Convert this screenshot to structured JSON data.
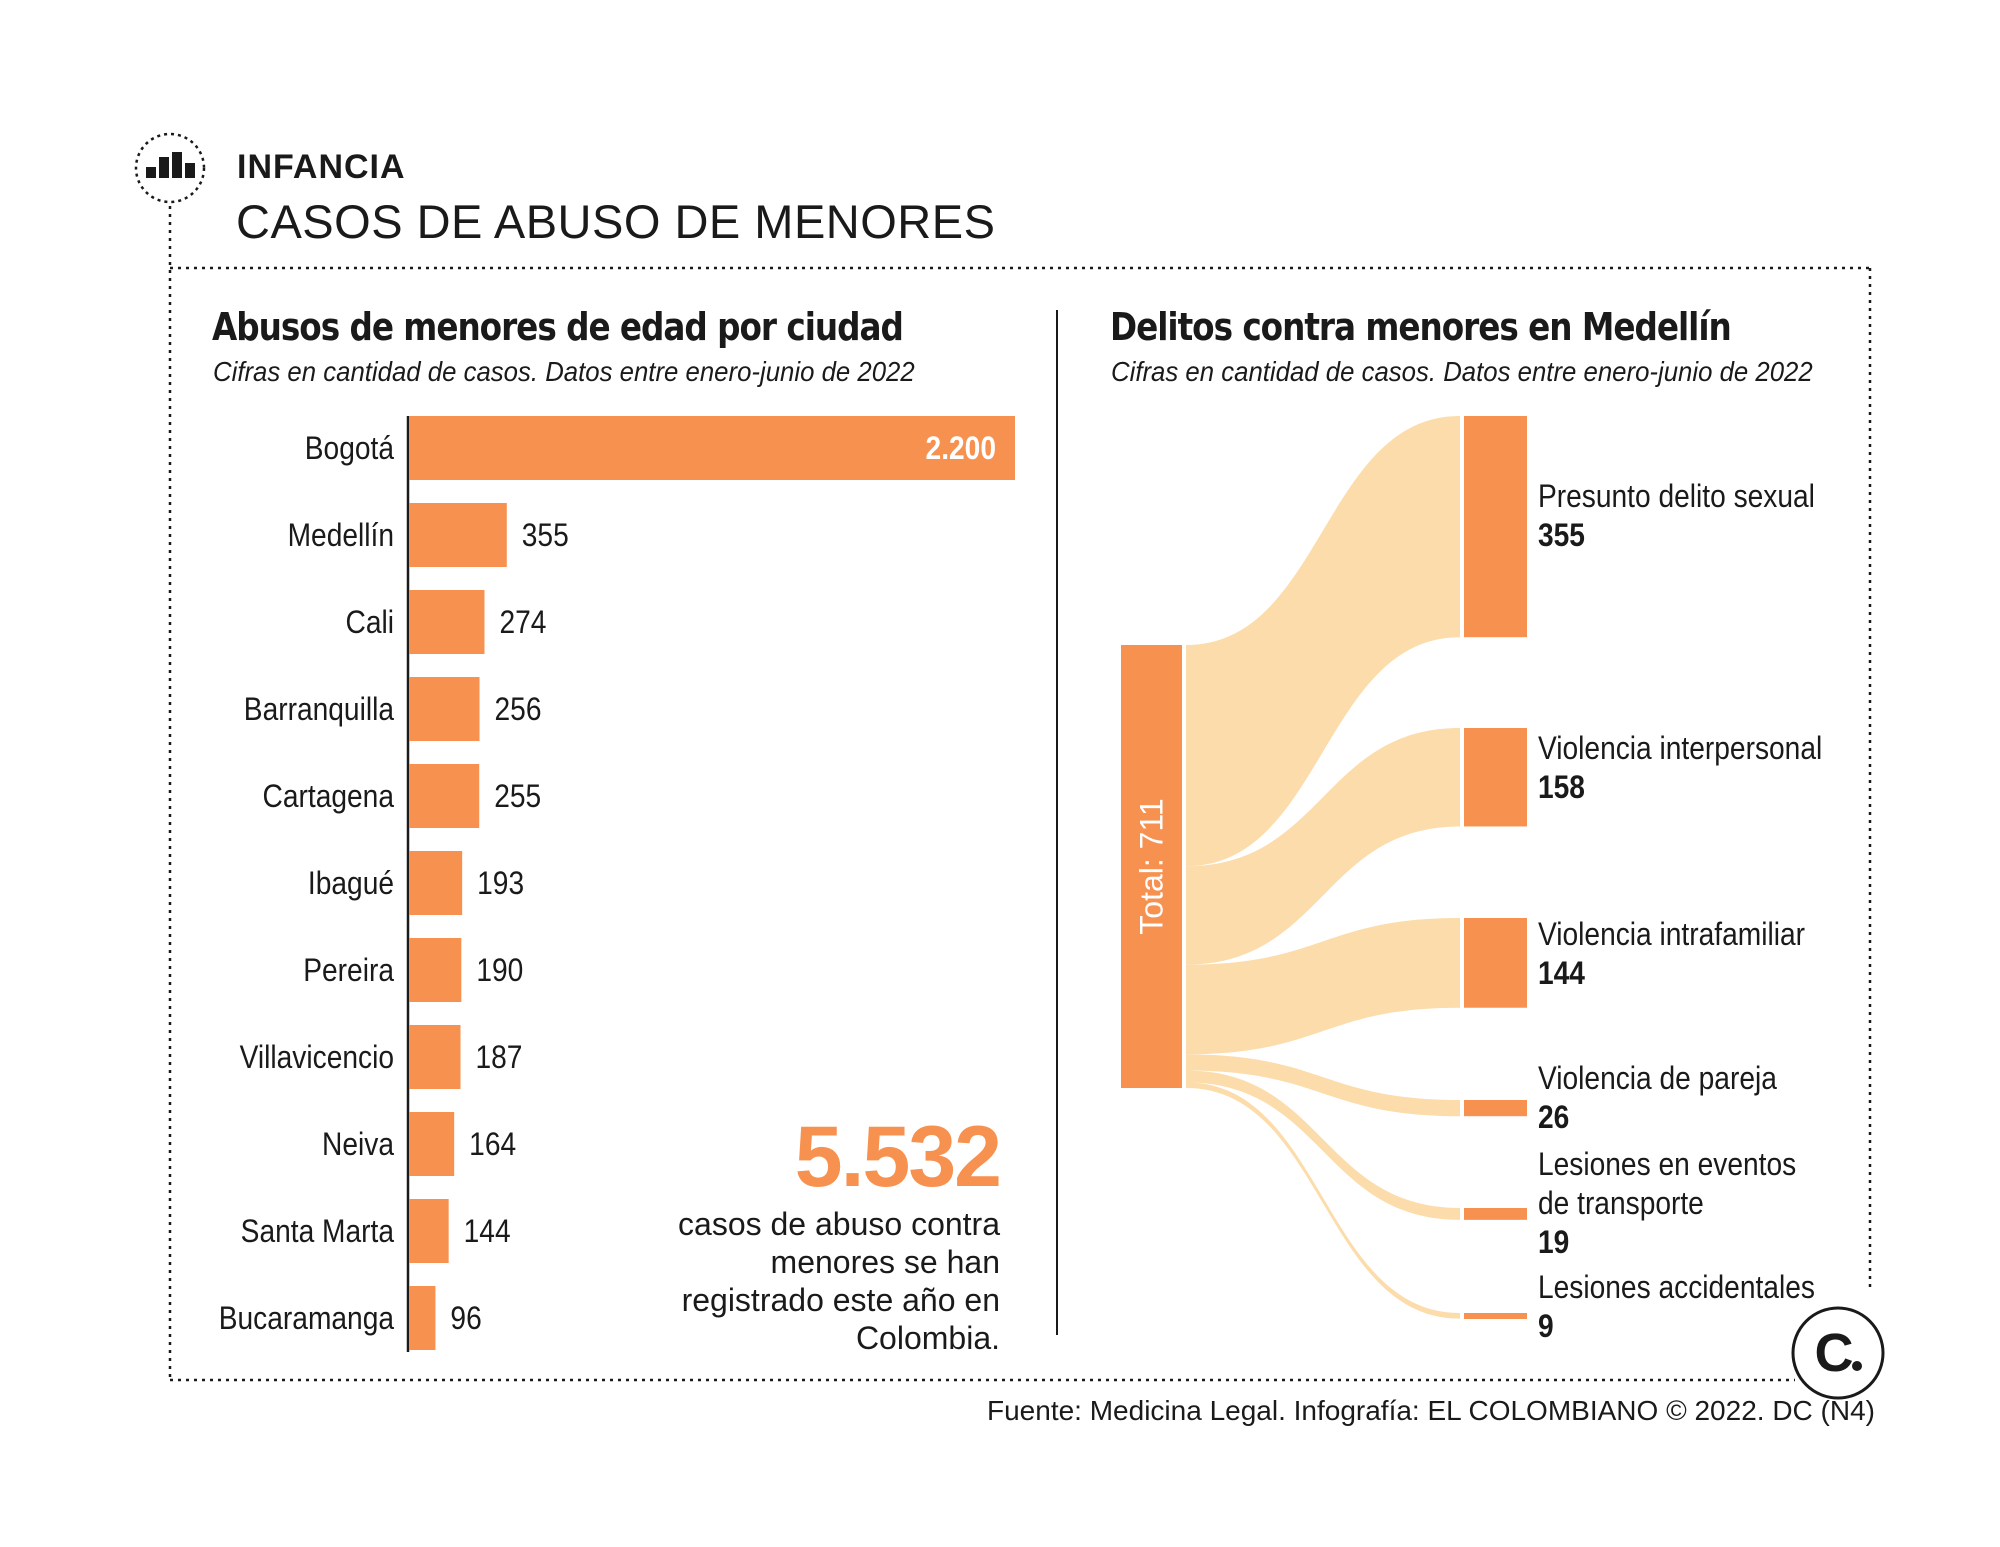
{
  "header": {
    "section": "INFANCIA",
    "title": "CASOS DE ABUSO DE MENORES"
  },
  "colors": {
    "accent": "#f7914f",
    "flow": "#fcdcaa",
    "text": "#1a1a1a"
  },
  "icons": {
    "section": "bar-chart-icon",
    "brand": "el-colombiano-logo"
  },
  "chart_data": [
    {
      "type": "bar",
      "orientation": "horizontal",
      "title": "Abusos de menores de edad por ciudad",
      "subtitle": "Cifras en cantidad de casos. Datos entre enero-junio de 2022",
      "categories": [
        "Bogotá",
        "Medellín",
        "Cali",
        "Barranquilla",
        "Cartagena",
        "Ibagué",
        "Pereira",
        "Villavicencio",
        "Neiva",
        "Santa Marta",
        "Bucaramanga"
      ],
      "values": [
        2200,
        355,
        274,
        256,
        255,
        193,
        190,
        187,
        164,
        144,
        96
      ],
      "value_labels": [
        "2.200",
        "355",
        "274",
        "256",
        "255",
        "193",
        "190",
        "187",
        "164",
        "144",
        "96"
      ],
      "xlim": [
        0,
        2200
      ]
    },
    {
      "type": "sankey",
      "title": "Delitos contra menores en Medellín",
      "subtitle": "Cifras en cantidad de casos. Datos entre enero-junio de 2022",
      "source_label": "Total: 711",
      "total": 711,
      "targets": [
        {
          "label": "Presunto delito sexual",
          "value": 355
        },
        {
          "label": "Violencia interpersonal",
          "value": 158
        },
        {
          "label": "Violencia intrafamiliar",
          "value": 144
        },
        {
          "label": "Violencia de pareja",
          "value": 26
        },
        {
          "label": "Lesiones en eventos de transporte",
          "label_lines": [
            "Lesiones en eventos",
            "de transporte"
          ],
          "value": 19
        },
        {
          "label": "Lesiones accidentales",
          "value": 9
        }
      ]
    }
  ],
  "highlight": {
    "number": "5.532",
    "description": "casos de abuso contra menores se han registrado este año en Colombia."
  },
  "footer": {
    "source": "Fuente: Medicina Legal. Infografía: EL COLOMBIANO © 2022. DC (N4)"
  }
}
